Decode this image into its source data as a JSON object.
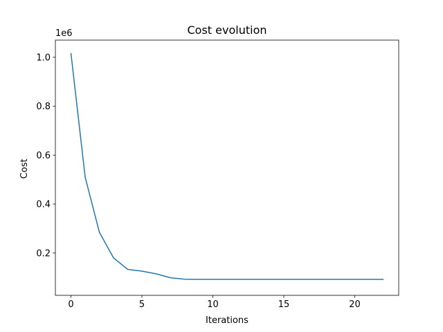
{
  "chart_data": {
    "type": "line",
    "title": "Cost evolution",
    "xlabel": "Iterations",
    "ylabel": "Cost",
    "y_offset_label": "1e6",
    "xlim": [
      -1.1,
      23.1
    ],
    "ylim": [
      27000,
      1070000
    ],
    "xticks": [
      0,
      5,
      10,
      15,
      20
    ],
    "xtick_labels": [
      "0",
      "5",
      "10",
      "15",
      "20"
    ],
    "yticks": [
      200000,
      400000,
      600000,
      800000,
      1000000
    ],
    "ytick_labels": [
      "0.2",
      "0.4",
      "0.6",
      "0.8",
      "1.0"
    ],
    "grid": false,
    "series": [
      {
        "color": "#1f77b4",
        "x": [
          0,
          1,
          2,
          3,
          4,
          5,
          6,
          7,
          8,
          9,
          10,
          11,
          12,
          13,
          14,
          15,
          16,
          17,
          18,
          19,
          20,
          21,
          22
        ],
        "y": [
          1015000,
          510000,
          285000,
          180000,
          133000,
          126000,
          115000,
          99000,
          93000,
          92500,
          92500,
          92500,
          92500,
          92500,
          92500,
          92500,
          92500,
          92500,
          92500,
          92500,
          92500,
          92500,
          92500
        ]
      }
    ]
  }
}
